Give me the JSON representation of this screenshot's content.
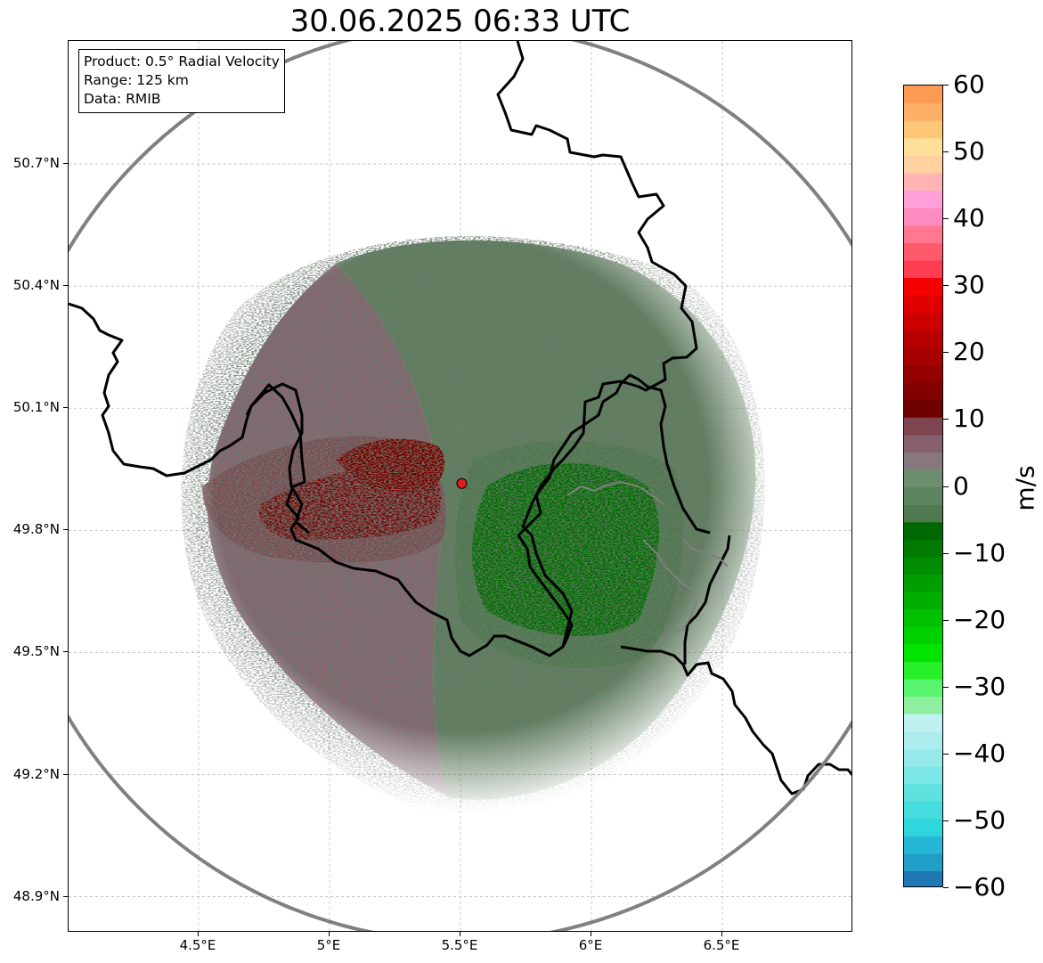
{
  "title": "30.06.2025 06:33 UTC",
  "info_box": {
    "product": "Product: 0.5° Radial Velocity",
    "range": "Range: 125 km",
    "data": "Data: RMIB"
  },
  "axes": {
    "lat_labels": [
      "50.7°N",
      "50.4°N",
      "50.1°N",
      "49.8°N",
      "49.5°N",
      "49.2°N",
      "48.9°N"
    ],
    "lon_labels": [
      "4.5°E",
      "5°E",
      "5.5°E",
      "6°E",
      "6.5°E"
    ],
    "lat_values": [
      50.7,
      50.4,
      50.1,
      49.8,
      49.5,
      49.2,
      48.9
    ],
    "lon_values": [
      4.5,
      5.0,
      5.5,
      6.0,
      6.5
    ],
    "lon_range": [
      4.0,
      7.0
    ],
    "lat_range": [
      48.8,
      51.0
    ],
    "grid": true
  },
  "radar": {
    "site_lon": 5.505,
    "site_lat": 49.915,
    "range_km": 125,
    "site_marker_color": "#e41a1c",
    "range_ring_color": "#808080"
  },
  "colorbar": {
    "unit": "m/s",
    "min": -60,
    "max": 60,
    "tick_labels": [
      "60",
      "50",
      "40",
      "30",
      "20",
      "10",
      "0",
      "−10",
      "−20",
      "−30",
      "−40",
      "−50",
      "−60"
    ],
    "tick_values": [
      60,
      50,
      40,
      30,
      20,
      10,
      0,
      -10,
      -20,
      -30,
      -40,
      -50,
      -60
    ],
    "colors": [
      "#1f78b4",
      "#1f9ec8",
      "#26b7d6",
      "#2fd6dc",
      "#44dcdc",
      "#5fe1e0",
      "#7ae6e6",
      "#96eaea",
      "#aeeded",
      "#c0f0f0",
      "#8ef0a0",
      "#5af56e",
      "#28f028",
      "#00e400",
      "#00d200",
      "#00c000",
      "#00ae00",
      "#009e00",
      "#008c00",
      "#007a00",
      "#006800",
      "#4f7a4f",
      "#5d8660",
      "#6d8e6e",
      "#86787d",
      "#86606d",
      "#7e4450",
      "#700000",
      "#820000",
      "#940000",
      "#a60000",
      "#b80000",
      "#cc0000",
      "#e00000",
      "#f70000",
      "#ff3c50",
      "#ff5a6a",
      "#ff7890",
      "#ff8cc0",
      "#ffa0d8",
      "#ffb4b4",
      "#ffd2a0",
      "#ffe09a",
      "#ffc878",
      "#ffb066",
      "#ff9a55"
    ]
  },
  "map_colors": {
    "inbound_strong": "#006e00",
    "inbound_weak": "#5e7f5e",
    "outbound_weak": "#8a6472",
    "outbound_strong": "#7a0000",
    "border": "#000000",
    "river": "#808080",
    "grid": "#b0b0b0"
  }
}
